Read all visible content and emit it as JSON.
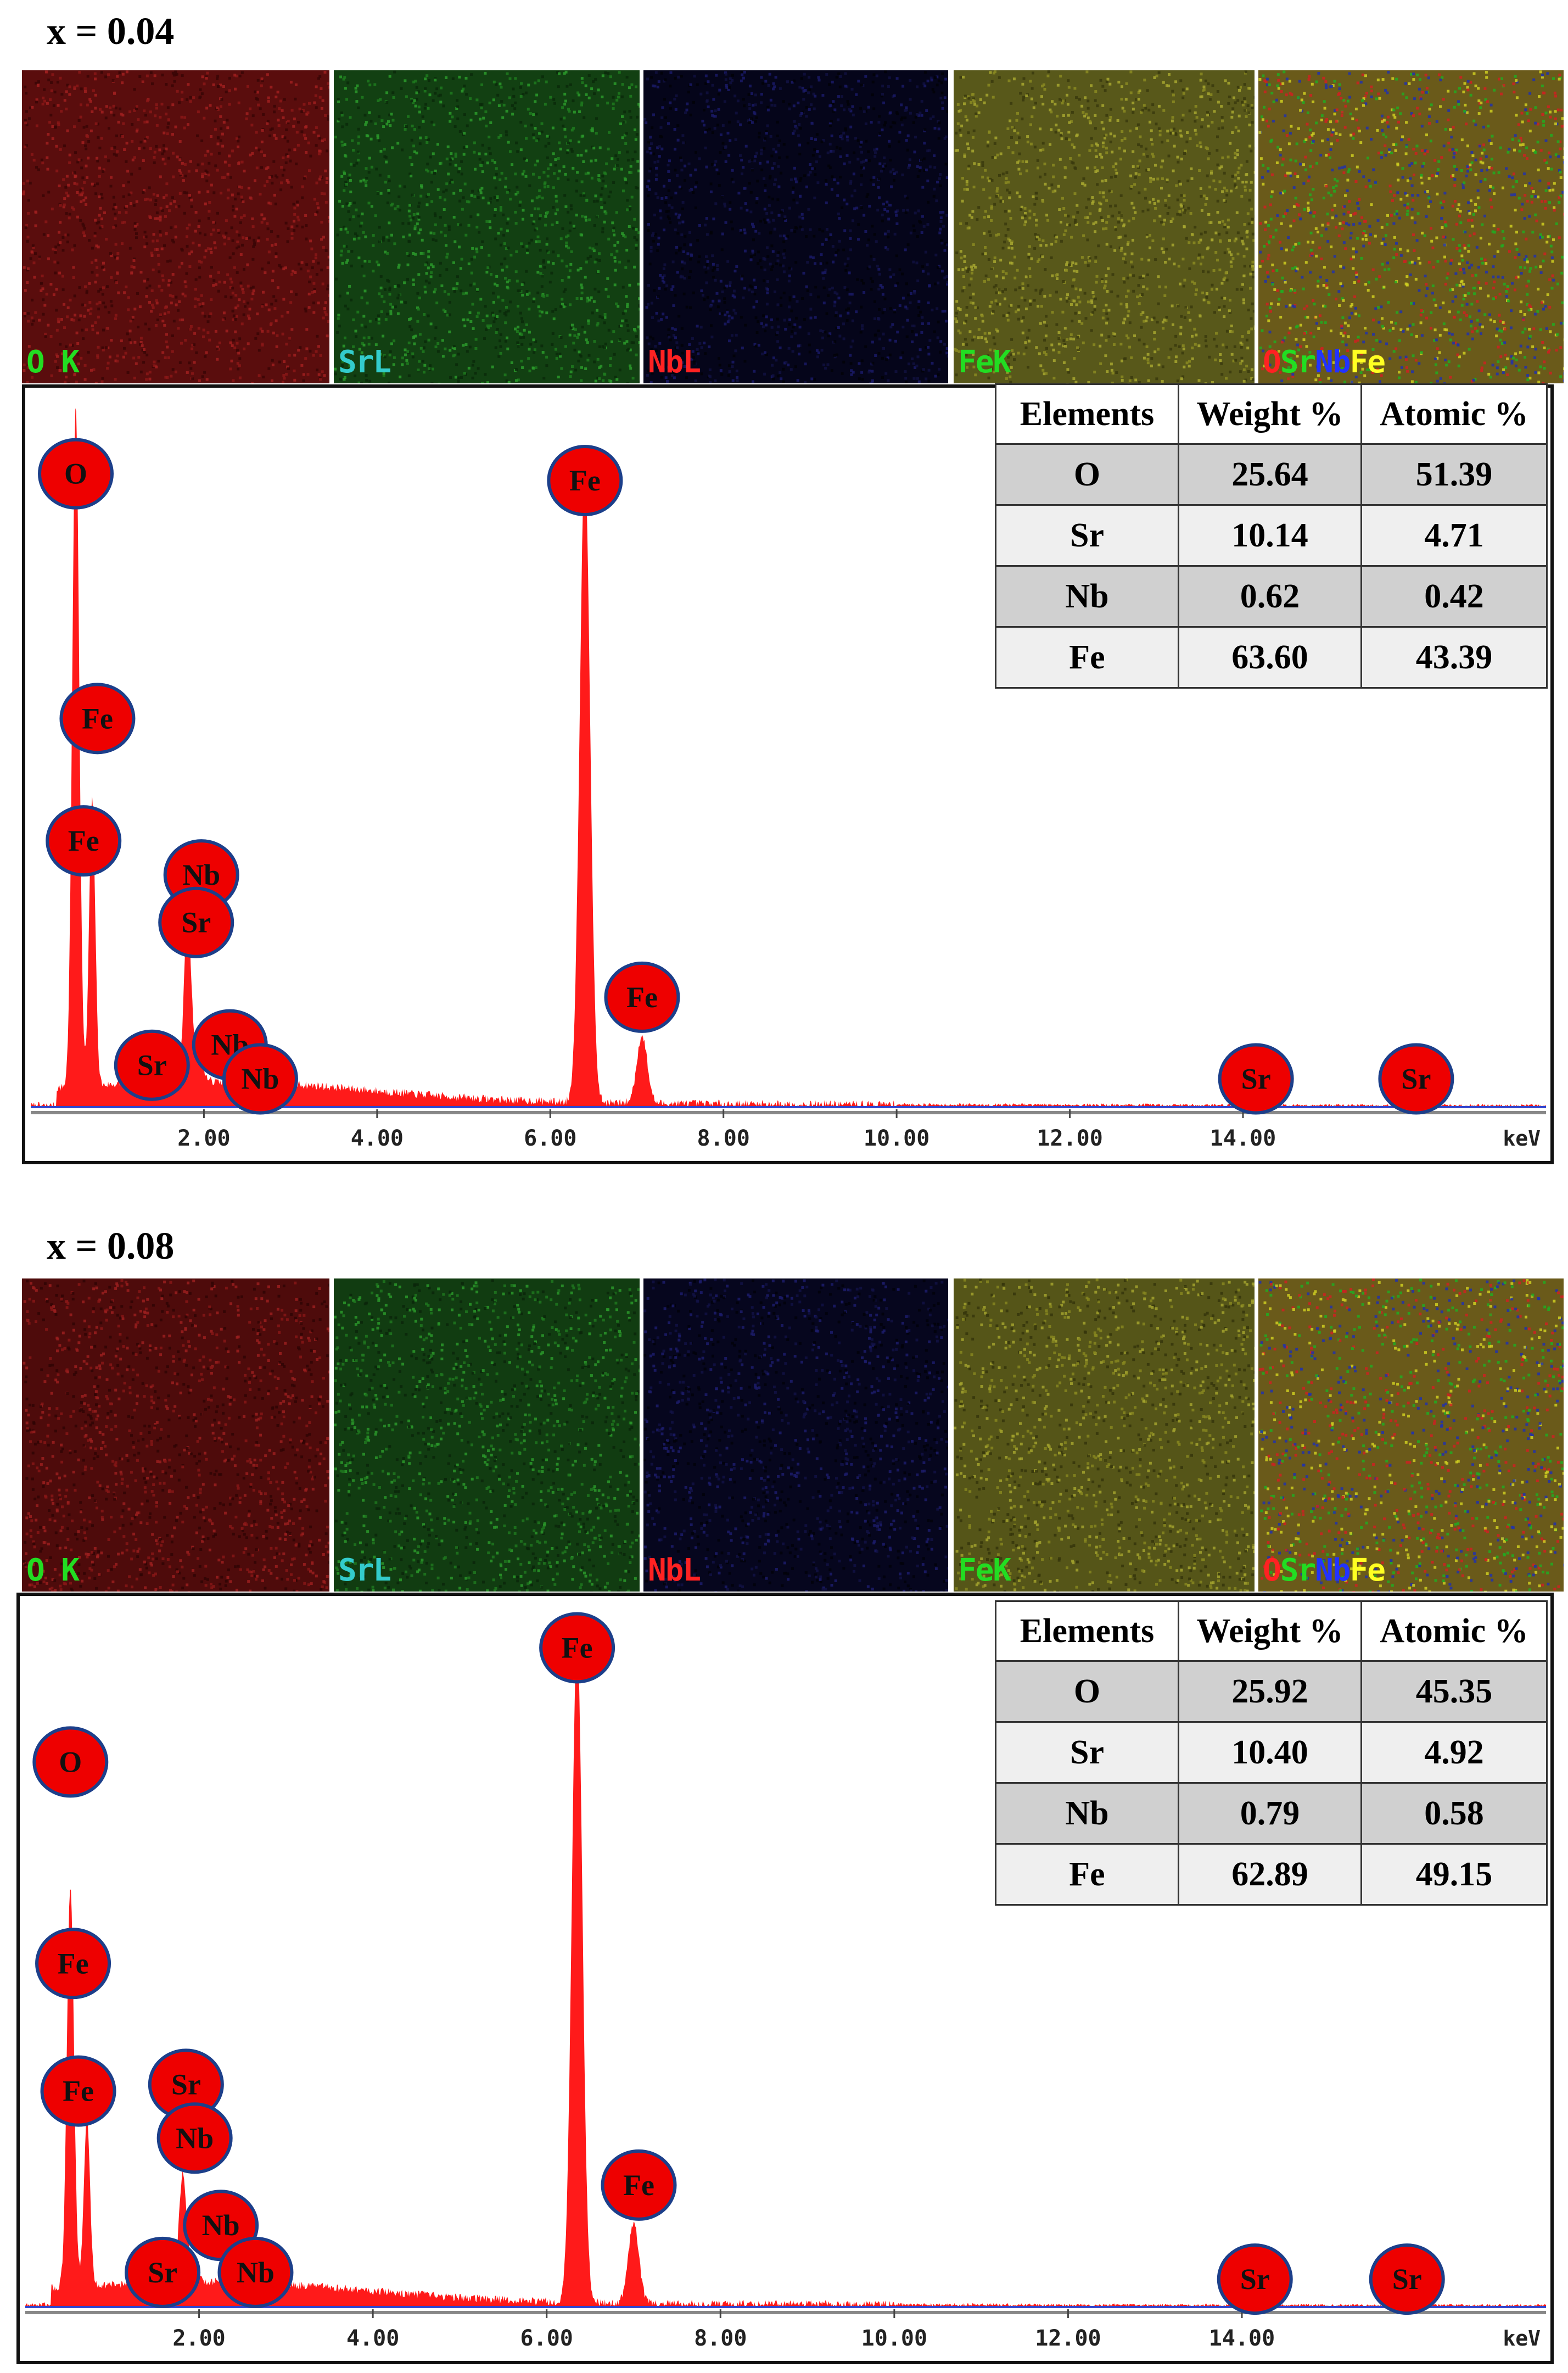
{
  "colors": {
    "spectrum": "#ff1a1a",
    "marker_fill": "#ee0000",
    "marker_border": "#1c3f8a",
    "baseline": "#3344cc"
  },
  "panels": [
    {
      "title": "x = 0.04",
      "maps": [
        {
          "label": "O K",
          "label_color": "#22dd22",
          "base": "#5a0d0d",
          "noise": [
            "#8a1818",
            "#3a0606",
            "#a02020"
          ]
        },
        {
          "label": "SrL",
          "label_color": "#33cccc",
          "base": "#124012",
          "noise": [
            "#1f7a1f",
            "#0a2a0a",
            "#2c9a2c"
          ]
        },
        {
          "label": "NbL",
          "label_color": "#ff2222",
          "base": "#05051a",
          "noise": [
            "#111140",
            "#020208",
            "#1a1a66"
          ]
        },
        {
          "label": "FeK",
          "label_color": "#22dd22",
          "base": "#58581a",
          "noise": [
            "#8a8a22",
            "#3a3a0e",
            "#a6a630"
          ]
        },
        {
          "label_parts": [
            {
              "t": "O",
              "c": "#ff2222"
            },
            {
              "t": "Sr",
              "c": "#22dd22"
            },
            {
              "t": "Nb",
              "c": "#2233ff"
            },
            {
              "t": "Fe",
              "c": "#ffff22"
            }
          ],
          "base": "#6a5a1a",
          "noise": [
            "#cc2222",
            "#22aa22",
            "#cccc22",
            "#2233aa"
          ]
        }
      ],
      "table": {
        "headers": [
          "Elements",
          "Weight %",
          "Atomic %"
        ],
        "rows": [
          [
            "O",
            "25.64",
            "51.39"
          ],
          [
            "Sr",
            "10.14",
            "4.71"
          ],
          [
            "Nb",
            "0.62",
            "0.42"
          ],
          [
            "Fe",
            "63.60",
            "43.39"
          ]
        ]
      },
      "chart_data": {
        "type": "line",
        "xlim": [
          0,
          17.5
        ],
        "x_ticks": [
          2.0,
          4.0,
          6.0,
          8.0,
          10.0,
          12.0,
          14.0
        ],
        "x_tick_labels": [
          "2.00",
          "4.00",
          "6.00",
          "8.00",
          "10.00",
          "12.00",
          "14.00"
        ],
        "x_unit": "keV",
        "ylim": [
          0,
          1.0
        ],
        "peaks": [
          {
            "x": 0.52,
            "y": 1.0,
            "w": 0.04
          },
          {
            "x": 0.71,
            "y": 0.42,
            "w": 0.035
          },
          {
            "x": 1.81,
            "y": 0.25,
            "w": 0.04
          },
          {
            "x": 1.93,
            "y": 0.05,
            "w": 0.05
          },
          {
            "x": 6.4,
            "y": 0.94,
            "w": 0.06
          },
          {
            "x": 7.06,
            "y": 0.1,
            "w": 0.06
          }
        ],
        "markers": [
          {
            "label": "O",
            "x": 0.52,
            "y": 0.93
          },
          {
            "label": "Fe",
            "x": 0.77,
            "y": 0.57
          },
          {
            "label": "Fe",
            "x": 0.61,
            "y": 0.39
          },
          {
            "label": "Nb",
            "x": 1.97,
            "y": 0.34
          },
          {
            "label": "Sr",
            "x": 1.91,
            "y": 0.27
          },
          {
            "label": "Sr",
            "x": 1.4,
            "y": 0.06
          },
          {
            "label": "Nb",
            "x": 2.3,
            "y": 0.09
          },
          {
            "label": "Nb",
            "x": 2.65,
            "y": 0.04
          },
          {
            "label": "Fe",
            "x": 6.4,
            "y": 0.92
          },
          {
            "label": "Fe",
            "x": 7.06,
            "y": 0.16
          },
          {
            "label": "Sr",
            "x": 14.15,
            "y": 0.04
          },
          {
            "label": "Sr",
            "x": 16.0,
            "y": 0.04
          }
        ]
      }
    },
    {
      "title": "x = 0.08",
      "maps": [
        {
          "label": "O K",
          "label_color": "#22dd22",
          "base": "#4e0b0b",
          "noise": [
            "#861616",
            "#300505",
            "#9a1e1e"
          ]
        },
        {
          "label": "SrL",
          "label_color": "#33cccc",
          "base": "#113c11",
          "noise": [
            "#1e761e",
            "#0a260a",
            "#2a962a"
          ]
        },
        {
          "label": "NbL",
          "label_color": "#ff2222",
          "base": "#06061e",
          "noise": [
            "#121244",
            "#02020a",
            "#1c1c6a"
          ]
        },
        {
          "label": "FeK",
          "label_color": "#22dd22",
          "base": "#555518",
          "noise": [
            "#868620",
            "#36360c",
            "#a2a22e"
          ]
        },
        {
          "label_parts": [
            {
              "t": "O",
              "c": "#ff2222"
            },
            {
              "t": "Sr",
              "c": "#22dd22"
            },
            {
              "t": "Nb",
              "c": "#2233ff"
            },
            {
              "t": "Fe",
              "c": "#ffff22"
            }
          ],
          "base": "#6a5a1a",
          "noise": [
            "#cc2222",
            "#22aa22",
            "#cccc22",
            "#2233aa"
          ]
        }
      ],
      "table": {
        "headers": [
          "Elements",
          "Weight %",
          "Atomic %"
        ],
        "rows": [
          [
            "O",
            "25.92",
            "45.35"
          ],
          [
            "Sr",
            "10.40",
            "4.92"
          ],
          [
            "Nb",
            "0.79",
            "0.58"
          ],
          [
            "Fe",
            "62.89",
            "49.15"
          ]
        ]
      },
      "chart_data": {
        "type": "line",
        "xlim": [
          0,
          17.5
        ],
        "x_ticks": [
          2.0,
          4.0,
          6.0,
          8.0,
          10.0,
          12.0,
          14.0
        ],
        "x_tick_labels": [
          "2.00",
          "4.00",
          "6.00",
          "8.00",
          "10.00",
          "12.00",
          "14.00"
        ],
        "x_unit": "keV",
        "ylim": [
          0,
          1.0
        ],
        "peaks": [
          {
            "x": 0.52,
            "y": 0.6,
            "w": 0.04
          },
          {
            "x": 0.71,
            "y": 0.25,
            "w": 0.035
          },
          {
            "x": 1.81,
            "y": 0.16,
            "w": 0.04
          },
          {
            "x": 1.93,
            "y": 0.04,
            "w": 0.05
          },
          {
            "x": 6.35,
            "y": 1.0,
            "w": 0.06
          },
          {
            "x": 7.0,
            "y": 0.12,
            "w": 0.06
          }
        ],
        "markers": [
          {
            "label": "O",
            "x": 0.52,
            "y": 0.81
          },
          {
            "label": "Fe",
            "x": 0.55,
            "y": 0.51
          },
          {
            "label": "Fe",
            "x": 0.61,
            "y": 0.32
          },
          {
            "label": "Sr",
            "x": 1.85,
            "y": 0.33
          },
          {
            "label": "Nb",
            "x": 1.95,
            "y": 0.25
          },
          {
            "label": "Nb",
            "x": 2.25,
            "y": 0.12
          },
          {
            "label": "Sr",
            "x": 1.58,
            "y": 0.05
          },
          {
            "label": "Nb",
            "x": 2.65,
            "y": 0.05
          },
          {
            "label": "Fe",
            "x": 6.35,
            "y": 0.98
          },
          {
            "label": "Fe",
            "x": 7.06,
            "y": 0.18
          },
          {
            "label": "Sr",
            "x": 14.15,
            "y": 0.04
          },
          {
            "label": "Sr",
            "x": 15.9,
            "y": 0.04
          }
        ]
      }
    }
  ]
}
